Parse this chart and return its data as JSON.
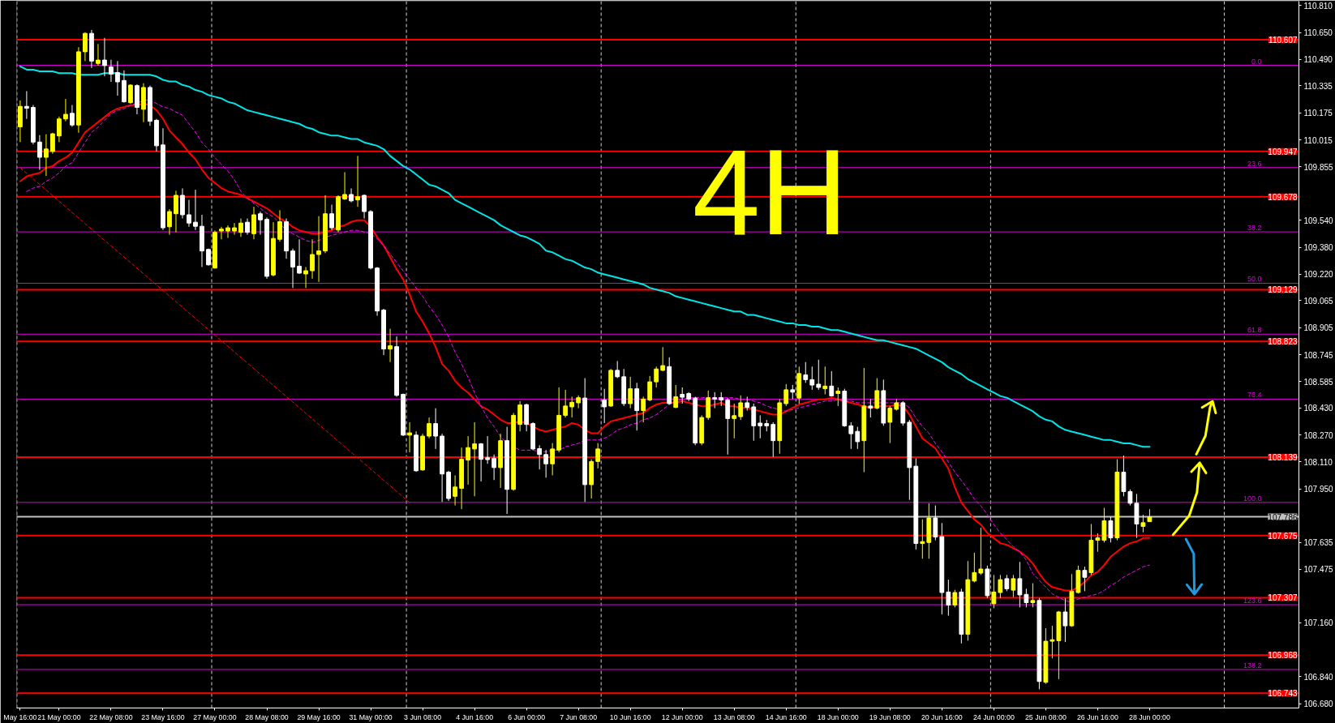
{
  "chart_data": {
    "type": "candlestick",
    "categories": [
      "May 16:00",
      null,
      null,
      null,
      null,
      null,
      "21 May 00:00",
      null,
      null,
      null,
      null,
      null,
      null,
      null,
      "22 May 08:00",
      null,
      null,
      null,
      null,
      null,
      null,
      null,
      "23 May 16:00",
      null,
      null,
      null,
      null,
      null,
      null,
      null,
      "27 May 00:00",
      null,
      null,
      null,
      null,
      null,
      null,
      null,
      "28 May 08:00",
      null,
      null,
      null,
      null,
      null,
      null,
      null,
      "29 May 16:00",
      null,
      null,
      null,
      null,
      null,
      null,
      null,
      "31 May 00:00",
      null,
      null,
      null,
      null,
      null,
      null,
      null,
      "3 Jun 08:00",
      null,
      null,
      null,
      null,
      null,
      null,
      null,
      "4 Jun 16:00",
      null,
      null,
      null,
      null,
      null,
      null,
      null,
      "6 Jun 00:00",
      null,
      null,
      null,
      null,
      null,
      null,
      null,
      "7 Jun 08:00",
      null,
      null,
      null,
      null,
      null,
      null,
      null,
      "10 Jun 16:00",
      null,
      null,
      null,
      null,
      null,
      null,
      null,
      "12 Jun 00:00",
      null,
      null,
      null,
      null,
      null,
      null,
      null,
      "13 Jun 08:00",
      null,
      null,
      null,
      null,
      null,
      null,
      null,
      "14 Jun 16:00",
      null,
      null,
      null,
      null,
      null,
      null,
      null,
      "18 Jun 00:00",
      null,
      null,
      null,
      null,
      null,
      null,
      null,
      "19 Jun 08:00",
      null,
      null,
      null,
      null,
      null,
      null,
      null,
      "20 Jun 16:00",
      null,
      null,
      null,
      null,
      null,
      null,
      null,
      "24 Jun 00:00",
      null,
      null,
      null,
      null,
      null,
      null,
      null,
      "25 Jun 08:00",
      null,
      null,
      null,
      null,
      null,
      null,
      null,
      "26 Jun 16:00",
      null,
      null,
      null,
      null,
      null,
      null,
      null,
      "28 Jun 00:00"
    ],
    "ohlc": [
      [
        110.092,
        110.248,
        110.002,
        110.213
      ],
      [
        110.213,
        110.303,
        110.139,
        110.202
      ],
      [
        110.207,
        110.221,
        109.988,
        110.002
      ],
      [
        110.002,
        110.043,
        109.838,
        109.912
      ],
      [
        109.912,
        110.048,
        109.802,
        109.961
      ],
      [
        109.947,
        110.057,
        109.933,
        110.051
      ],
      [
        110.038,
        110.153,
        110.002,
        110.139
      ],
      [
        110.139,
        110.257,
        110.125,
        110.166
      ],
      [
        110.172,
        110.221,
        110.092,
        110.103
      ],
      [
        110.103,
        110.563,
        110.057,
        110.536
      ],
      [
        110.536,
        110.651,
        110.481,
        110.645
      ],
      [
        110.645,
        110.665,
        110.44,
        110.481
      ],
      [
        110.467,
        110.582,
        110.454,
        110.487
      ],
      [
        110.487,
        110.618,
        110.391,
        110.454
      ],
      [
        110.446,
        110.489,
        110.358,
        110.404
      ],
      [
        110.413,
        110.481,
        110.276,
        110.358
      ],
      [
        110.366,
        110.426,
        110.235,
        110.24
      ],
      [
        110.235,
        110.344,
        110.229,
        110.339
      ],
      [
        110.336,
        110.344,
        110.166,
        110.207
      ],
      [
        110.196,
        110.35,
        110.12,
        110.325
      ],
      [
        110.325,
        110.336,
        110.098,
        110.125
      ],
      [
        110.131,
        110.139,
        109.947,
        109.98
      ],
      [
        109.985,
        110.084,
        109.482,
        109.495
      ],
      [
        109.501,
        109.605,
        109.454,
        109.591
      ],
      [
        109.578,
        109.714,
        109.468,
        109.687
      ],
      [
        109.687,
        109.728,
        109.55,
        109.572
      ],
      [
        109.572,
        109.66,
        109.501,
        109.523
      ],
      [
        109.528,
        109.72,
        109.482,
        109.504
      ],
      [
        109.504,
        109.572,
        109.263,
        109.358
      ],
      [
        109.367,
        109.372,
        109.271,
        109.276
      ],
      [
        109.257,
        109.479,
        109.254,
        109.468
      ],
      [
        109.476,
        109.501,
        109.427,
        109.487
      ],
      [
        109.476,
        109.509,
        109.435,
        109.495
      ],
      [
        109.476,
        109.523,
        109.454,
        109.495
      ],
      [
        109.468,
        109.55,
        109.441,
        109.523
      ],
      [
        109.528,
        109.55,
        109.454,
        109.468
      ],
      [
        109.46,
        109.619,
        109.427,
        109.572
      ],
      [
        109.578,
        109.591,
        109.454,
        109.542
      ],
      [
        109.545,
        109.556,
        109.194,
        109.208
      ],
      [
        109.216,
        109.528,
        109.208,
        109.432
      ],
      [
        109.427,
        109.599,
        109.413,
        109.531
      ],
      [
        109.531,
        109.55,
        109.312,
        109.358
      ],
      [
        109.358,
        109.372,
        109.139,
        109.263
      ],
      [
        109.268,
        109.427,
        109.222,
        109.227
      ],
      [
        109.222,
        109.263,
        109.139,
        109.241
      ],
      [
        109.241,
        109.427,
        109.194,
        109.337
      ],
      [
        109.337,
        109.564,
        109.175,
        109.358
      ],
      [
        109.358,
        109.687,
        109.345,
        109.578
      ],
      [
        109.578,
        109.632,
        109.482,
        109.495
      ],
      [
        109.482,
        109.687,
        109.468,
        109.679
      ],
      [
        109.665,
        109.824,
        109.66,
        109.692
      ],
      [
        109.692,
        109.728,
        109.646,
        109.654
      ],
      [
        109.66,
        109.92,
        109.619,
        109.679
      ],
      [
        109.687,
        109.692,
        109.55,
        109.591
      ],
      [
        109.591,
        109.599,
        109.249,
        109.257
      ],
      [
        109.257,
        109.263,
        108.975,
        109.003
      ],
      [
        109.008,
        109.016,
        108.742,
        108.778
      ],
      [
        108.778,
        108.898,
        108.701,
        108.797
      ],
      [
        108.792,
        108.852,
        108.496,
        108.504
      ],
      [
        108.51,
        108.515,
        108.263,
        108.269
      ],
      [
        108.269,
        108.345,
        108.167,
        108.282
      ],
      [
        108.269,
        108.291,
        108.052,
        108.058
      ],
      [
        108.063,
        108.277,
        108.058,
        108.263
      ],
      [
        108.263,
        108.373,
        108.25,
        108.337
      ],
      [
        108.337,
        108.428,
        108.187,
        108.263
      ],
      [
        108.263,
        108.277,
        107.874,
        108.039
      ],
      [
        108.05,
        108.058,
        107.88,
        107.894
      ],
      [
        107.907,
        108.031,
        107.853,
        107.962
      ],
      [
        107.954,
        108.195,
        107.831,
        108.126
      ],
      [
        108.121,
        108.263,
        107.976,
        108.195
      ],
      [
        108.187,
        108.345,
        107.907,
        108.217
      ],
      [
        108.217,
        108.222,
        107.995,
        108.126
      ],
      [
        108.135,
        108.263,
        108.099,
        108.124
      ],
      [
        108.132,
        108.154,
        108.003,
        108.077
      ],
      [
        108.077,
        108.277,
        107.957,
        108.236
      ],
      [
        108.236,
        108.318,
        107.803,
        107.948
      ],
      [
        107.948,
        108.4,
        107.94,
        108.386
      ],
      [
        108.332,
        108.469,
        108.291,
        108.447
      ],
      [
        108.449,
        108.455,
        108.291,
        108.332
      ],
      [
        108.337,
        108.345,
        108.181,
        108.187
      ],
      [
        108.189,
        108.209,
        108.066,
        108.154
      ],
      [
        108.154,
        108.181,
        108.017,
        108.099
      ],
      [
        108.099,
        108.222,
        108.031,
        108.187
      ],
      [
        108.181,
        108.551,
        108.167,
        108.386
      ],
      [
        108.386,
        108.537,
        108.373,
        108.441
      ],
      [
        108.436,
        108.496,
        108.373,
        108.463
      ],
      [
        108.46,
        108.504,
        108.428,
        108.49
      ],
      [
        108.488,
        108.606,
        107.874,
        107.976
      ],
      [
        107.976,
        108.126,
        107.894,
        108.113
      ],
      [
        108.113,
        108.222,
        108.072,
        108.187
      ],
      [
        108.477,
        108.543,
        108.34,
        108.436
      ],
      [
        108.441,
        108.66,
        108.436,
        108.652
      ],
      [
        108.652,
        108.707,
        108.606,
        108.614
      ],
      [
        108.614,
        108.66,
        108.441,
        108.455
      ],
      [
        108.455,
        108.614,
        108.428,
        108.543
      ],
      [
        108.543,
        108.578,
        108.296,
        108.414
      ],
      [
        108.414,
        108.496,
        108.345,
        108.482
      ],
      [
        108.477,
        108.619,
        108.469,
        108.584
      ],
      [
        108.584,
        108.674,
        108.551,
        108.66
      ],
      [
        108.652,
        108.789,
        108.647,
        108.68
      ],
      [
        108.674,
        108.729,
        108.449,
        108.455
      ],
      [
        108.433,
        108.565,
        108.428,
        108.496
      ],
      [
        108.51,
        108.551,
        108.455,
        108.493
      ],
      [
        108.515,
        108.523,
        108.469,
        108.482
      ],
      [
        108.488,
        108.496,
        108.209,
        108.222
      ],
      [
        108.222,
        108.386,
        108.209,
        108.373
      ],
      [
        108.373,
        108.532,
        108.359,
        108.49
      ],
      [
        108.49,
        108.523,
        108.428,
        108.482
      ],
      [
        108.49,
        108.523,
        108.441,
        108.477
      ],
      [
        108.477,
        108.488,
        108.154,
        108.367
      ],
      [
        108.367,
        108.455,
        108.25,
        108.384
      ],
      [
        108.378,
        108.504,
        108.359,
        108.46
      ],
      [
        108.46,
        108.496,
        108.414,
        108.433
      ],
      [
        108.436,
        108.455,
        108.236,
        108.324
      ],
      [
        108.34,
        108.386,
        108.25,
        108.324
      ],
      [
        108.337,
        108.359,
        108.291,
        108.324
      ],
      [
        108.332,
        108.345,
        108.14,
        108.236
      ],
      [
        108.236,
        108.482,
        108.159,
        108.46
      ],
      [
        108.455,
        108.57,
        108.441,
        108.537
      ],
      [
        108.537,
        108.565,
        108.482,
        108.523
      ],
      [
        108.488,
        108.674,
        108.455,
        108.633
      ],
      [
        108.625,
        108.701,
        108.578,
        108.597
      ],
      [
        108.597,
        108.674,
        108.537,
        108.565
      ],
      [
        108.57,
        108.715,
        108.537,
        108.551
      ],
      [
        108.543,
        108.674,
        108.51,
        108.559
      ],
      [
        108.559,
        108.647,
        108.496,
        108.501
      ],
      [
        108.515,
        108.551,
        108.441,
        108.529
      ],
      [
        108.529,
        108.543,
        108.318,
        108.324
      ],
      [
        108.324,
        108.345,
        108.187,
        108.277
      ],
      [
        108.291,
        108.318,
        108.187,
        108.23
      ],
      [
        108.236,
        108.666,
        108.05,
        108.441
      ],
      [
        108.441,
        108.482,
        108.373,
        108.428
      ],
      [
        108.428,
        108.606,
        108.422,
        108.532
      ],
      [
        108.532,
        108.597,
        108.324,
        108.34
      ],
      [
        108.345,
        108.441,
        108.222,
        108.428
      ],
      [
        108.422,
        108.482,
        108.414,
        108.46
      ],
      [
        108.46,
        108.469,
        108.324,
        108.34
      ],
      [
        108.345,
        108.359,
        107.886,
        108.077
      ],
      [
        108.085,
        108.132,
        107.593,
        107.628
      ],
      [
        107.628,
        107.771,
        107.538,
        107.639
      ],
      [
        107.634,
        107.866,
        107.538,
        107.779
      ],
      [
        107.779,
        107.853,
        107.647,
        107.666
      ],
      [
        107.669,
        107.749,
        107.209,
        107.338
      ],
      [
        107.341,
        107.414,
        107.201,
        107.264
      ],
      [
        107.264,
        107.354,
        107.25,
        107.338
      ],
      [
        107.341,
        107.36,
        107.037,
        107.091
      ],
      [
        107.091,
        107.524,
        107.053,
        107.414
      ],
      [
        107.406,
        107.573,
        107.398,
        107.456
      ],
      [
        107.453,
        107.721,
        107.442,
        107.477
      ],
      [
        107.477,
        107.497,
        107.305,
        107.319
      ],
      [
        107.272,
        107.442,
        107.245,
        107.341
      ],
      [
        107.338,
        107.442,
        107.305,
        107.414
      ],
      [
        107.42,
        107.442,
        107.346,
        107.36
      ],
      [
        107.352,
        107.442,
        107.311,
        107.42
      ],
      [
        107.42,
        107.519,
        107.25,
        107.324
      ],
      [
        107.327,
        107.36,
        107.25,
        107.278
      ],
      [
        107.278,
        107.393,
        107.25,
        107.291
      ],
      [
        107.291,
        107.305,
        106.766,
        106.812
      ],
      [
        106.807,
        107.127,
        106.798,
        107.05
      ],
      [
        107.05,
        107.141,
        106.949,
        107.059
      ],
      [
        107.053,
        107.229,
        106.826,
        107.223
      ],
      [
        107.223,
        107.305,
        107.045,
        107.141
      ],
      [
        107.141,
        107.447,
        107.135,
        107.346
      ],
      [
        107.338,
        107.497,
        107.332,
        107.469
      ],
      [
        107.469,
        107.491,
        107.346,
        107.428
      ],
      [
        107.456,
        107.743,
        107.442,
        107.647
      ],
      [
        107.647,
        107.688,
        107.579,
        107.661
      ],
      [
        107.647,
        107.839,
        107.634,
        107.762
      ],
      [
        107.762,
        107.784,
        107.634,
        107.661
      ],
      [
        107.661,
        108.126,
        107.647,
        108.05
      ],
      [
        108.05,
        108.148,
        107.907,
        107.935
      ],
      [
        107.935,
        107.948,
        107.853,
        107.866
      ],
      [
        107.866,
        107.921,
        107.661,
        107.743
      ],
      [
        107.729,
        107.798,
        107.694,
        107.751
      ],
      [
        107.757,
        107.831,
        107.757,
        107.786
      ]
    ],
    "colors": [
      "#ffff00",
      "#ffffff",
      "#ffffff",
      "#ffffff",
      "#ffff00",
      "#ffff00",
      "#ffff00",
      "#ffff00",
      "#ffffff",
      "#ffff00",
      "#ffff00",
      "#ffffff",
      "#ffff00",
      "#ffffff",
      "#ffffff",
      "#ffffff",
      "#ffffff",
      "#ffff00",
      "#ffffff",
      "#ffff00",
      "#ffffff",
      "#ffffff",
      "#ffffff",
      "#ffff00",
      "#ffff00",
      "#ffffff",
      "#ffffff",
      "#ffffff",
      "#ffffff",
      "#ffffff",
      "#ffff00",
      "#ffff00",
      "#ffff00",
      "#ffff00",
      "#ffff00",
      "#ffffff",
      "#ffff00",
      "#ffffff",
      "#ffffff",
      "#ffff00",
      "#ffff00",
      "#ffffff",
      "#ffffff",
      "#ffffff",
      "#ffff00",
      "#ffff00",
      "#ffff00",
      "#ffff00",
      "#ffffff",
      "#ffff00",
      "#ffff00",
      "#ffffff",
      "#ffff00",
      "#ffffff",
      "#ffffff",
      "#ffffff",
      "#ffffff",
      "#ffff00",
      "#ffffff",
      "#ffffff",
      "#ffff00",
      "#ffffff",
      "#ffff00",
      "#ffff00",
      "#ffffff",
      "#ffffff",
      "#ffffff",
      "#ffff00",
      "#ffff00",
      "#ffff00",
      "#ffff00",
      "#ffffff",
      "#ffffff",
      "#ffffff",
      "#ffff00",
      "#ffffff",
      "#ffff00",
      "#ffff00",
      "#ffffff",
      "#ffffff",
      "#ffffff",
      "#ffffff",
      "#ffff00",
      "#ffff00",
      "#ffff00",
      "#ffff00",
      "#ffff00",
      "#ffffff",
      "#ffff00",
      "#ffff00",
      "#ffffff",
      "#ffff00",
      "#ffffff",
      "#ffffff",
      "#ffff00",
      "#ffffff",
      "#ffff00",
      "#ffff00",
      "#ffff00",
      "#ffff00",
      "#ffffff",
      "#ffff00",
      "#ffffff",
      "#ffffff",
      "#ffffff",
      "#ffff00",
      "#ffff00",
      "#ffffff",
      "#ffffff",
      "#ffffff",
      "#ffff00",
      "#ffff00",
      "#ffffff",
      "#ffffff",
      "#ffffff",
      "#ffffff",
      "#ffffff",
      "#ffff00",
      "#ffff00",
      "#ffffff",
      "#ffff00",
      "#ffffff",
      "#ffffff",
      "#ffffff",
      "#ffff00",
      "#ffffff",
      "#ffff00",
      "#ffffff",
      "#ffffff",
      "#ffffff",
      "#ffff00",
      "#ffffff",
      "#ffff00",
      "#ffffff",
      "#ffff00",
      "#ffff00",
      "#ffffff",
      "#ffffff",
      "#ffffff",
      "#ffff00",
      "#ffff00",
      "#ffffff",
      "#ffffff",
      "#ffffff",
      "#ffff00",
      "#ffffff",
      "#ffff00",
      "#ffff00",
      "#ffff00",
      "#ffffff",
      "#ffff00",
      "#ffff00",
      "#ffffff",
      "#ffff00",
      "#ffffff",
      "#ffffff",
      "#ffff00",
      "#ffffff",
      "#ffff00",
      "#ffff00",
      "#ffff00",
      "#ffffff",
      "#ffff00",
      "#ffff00",
      "#ffffff",
      "#ffff00",
      "#ffff00",
      "#ffff00",
      "#ffffff",
      "#ffff00",
      "#ffffff",
      "#ffffff",
      "#ffffff",
      "#ffff00",
      "#ffff00"
    ],
    "series": [
      {
        "type": "line",
        "color": "#00e6e6",
        "line_style": "solid",
        "values": [
          110.45,
          110.43,
          110.43,
          110.42,
          110.42,
          110.42,
          110.41,
          110.41,
          110.41,
          110.4,
          110.4,
          110.4,
          110.4,
          110.41,
          110.41,
          110.41,
          110.4,
          110.4,
          110.4,
          110.4,
          110.4,
          110.39,
          110.37,
          110.36,
          110.36,
          110.34,
          110.33,
          110.31,
          110.3,
          110.28,
          110.27,
          110.26,
          110.24,
          110.23,
          110.21,
          110.19,
          110.18,
          110.17,
          110.16,
          110.15,
          110.14,
          110.13,
          110.12,
          110.11,
          110.09,
          110.08,
          110.06,
          110.05,
          110.04,
          110.04,
          110.03,
          110.02,
          110.02,
          110.0,
          109.99,
          109.98,
          109.96,
          109.92,
          109.89,
          109.86,
          109.84,
          109.81,
          109.78,
          109.75,
          109.74,
          109.72,
          109.7,
          109.66,
          109.64,
          109.62,
          109.6,
          109.58,
          109.56,
          109.54,
          109.51,
          109.49,
          109.47,
          109.45,
          109.44,
          109.42,
          109.4,
          109.36,
          109.35,
          109.33,
          109.31,
          109.3,
          109.28,
          109.26,
          109.25,
          109.23,
          109.22,
          109.21,
          109.2,
          109.19,
          109.18,
          109.17,
          109.16,
          109.14,
          109.13,
          109.12,
          109.11,
          109.09,
          109.08,
          109.07,
          109.06,
          109.05,
          109.04,
          109.03,
          109.02,
          109.01,
          109.0,
          109.0,
          108.98,
          108.98,
          108.97,
          108.96,
          108.95,
          108.94,
          108.93,
          108.93,
          108.92,
          108.92,
          108.91,
          108.91,
          108.9,
          108.89,
          108.89,
          108.88,
          108.87,
          108.86,
          108.85,
          108.84,
          108.83,
          108.83,
          108.82,
          108.81,
          108.8,
          108.79,
          108.78,
          108.76,
          108.74,
          108.72,
          108.7,
          108.67,
          108.65,
          108.63,
          108.6,
          108.58,
          108.56,
          108.54,
          108.52,
          108.5,
          108.49,
          108.47,
          108.45,
          108.43,
          108.41,
          108.38,
          108.36,
          108.35,
          108.32,
          108.3,
          108.29,
          108.28,
          108.27,
          108.26,
          108.25,
          108.24,
          108.24,
          108.23,
          108.22,
          108.22,
          108.21,
          108.2,
          108.2
        ]
      },
      {
        "type": "line",
        "color": "#ff0000",
        "line_style": "solid",
        "values": [
          109.77,
          109.8,
          109.81,
          109.82,
          109.85,
          109.86,
          109.89,
          109.91,
          109.94,
          110.0,
          110.06,
          110.09,
          110.12,
          110.15,
          110.18,
          110.2,
          110.21,
          110.22,
          110.22,
          110.23,
          110.22,
          110.19,
          110.14,
          110.07,
          110.03,
          109.99,
          109.94,
          109.9,
          109.84,
          109.79,
          109.76,
          109.73,
          109.71,
          109.7,
          109.69,
          109.67,
          109.65,
          109.63,
          109.61,
          109.58,
          109.55,
          109.53,
          109.5,
          109.48,
          109.47,
          109.46,
          109.46,
          109.47,
          109.48,
          109.5,
          109.51,
          109.53,
          109.54,
          109.54,
          109.5,
          109.44,
          109.39,
          109.32,
          109.25,
          109.19,
          109.1,
          109.0,
          108.94,
          108.87,
          108.79,
          108.69,
          108.65,
          108.59,
          108.55,
          108.52,
          108.48,
          108.44,
          108.42,
          108.39,
          108.36,
          108.34,
          108.34,
          108.35,
          108.34,
          108.32,
          108.3,
          108.29,
          108.3,
          108.31,
          108.32,
          108.34,
          108.33,
          108.3,
          108.28,
          108.28,
          108.32,
          108.35,
          108.36,
          108.37,
          108.38,
          108.39,
          108.4,
          108.43,
          108.45,
          108.46,
          108.46,
          108.46,
          108.47,
          108.46,
          108.45,
          108.44,
          108.44,
          108.45,
          108.46,
          108.44,
          108.44,
          108.43,
          108.43,
          108.42,
          108.41,
          108.4,
          108.39,
          108.39,
          108.41,
          108.43,
          108.45,
          108.46,
          108.47,
          108.48,
          108.48,
          108.49,
          108.48,
          108.47,
          108.46,
          108.45,
          108.44,
          108.43,
          108.44,
          108.44,
          108.44,
          108.45,
          108.44,
          108.39,
          108.32,
          108.25,
          108.22,
          108.19,
          108.13,
          108.07,
          107.96,
          107.87,
          107.82,
          107.77,
          107.74,
          107.69,
          107.66,
          107.63,
          107.62,
          107.6,
          107.58,
          107.55,
          107.51,
          107.45,
          107.4,
          107.37,
          107.36,
          107.35,
          107.35,
          107.37,
          107.4,
          107.44,
          107.46,
          107.5,
          107.55,
          107.58,
          107.61,
          107.63,
          107.64,
          107.66,
          107.66
        ]
      },
      {
        "type": "line",
        "color": "#ff00ff",
        "line_style": "dashed",
        "values": [
          null,
          109.71,
          109.73,
          109.74,
          109.77,
          109.79,
          109.82,
          109.86,
          109.88,
          109.94,
          110.0,
          110.06,
          110.09,
          110.13,
          110.17,
          110.19,
          110.2,
          110.22,
          110.23,
          110.25,
          110.25,
          110.23,
          110.21,
          110.2,
          110.18,
          110.16,
          110.11,
          110.06,
          110.0,
          109.96,
          109.91,
          109.87,
          109.83,
          109.78,
          109.71,
          109.67,
          109.64,
          109.61,
          109.58,
          109.56,
          109.52,
          109.48,
          109.46,
          109.44,
          109.42,
          109.41,
          109.42,
          109.44,
          109.45,
          109.46,
          109.47,
          109.48,
          109.48,
          109.47,
          109.46,
          109.43,
          109.39,
          109.34,
          109.29,
          109.24,
          109.19,
          109.14,
          109.09,
          109.03,
          108.98,
          108.92,
          108.85,
          108.76,
          108.69,
          108.61,
          108.52,
          108.44,
          108.37,
          108.32,
          108.26,
          108.22,
          108.2,
          108.18,
          108.18,
          108.18,
          108.17,
          108.17,
          108.18,
          108.18,
          108.2,
          108.21,
          108.22,
          108.24,
          108.24,
          108.24,
          108.25,
          108.27,
          108.3,
          108.31,
          108.33,
          108.34,
          108.36,
          108.37,
          108.39,
          108.42,
          108.45,
          108.47,
          108.48,
          108.49,
          108.49,
          108.49,
          108.49,
          108.49,
          108.49,
          108.49,
          108.49,
          108.48,
          108.48,
          108.47,
          108.46,
          108.44,
          108.43,
          108.42,
          108.41,
          108.42,
          108.43,
          108.44,
          108.45,
          108.46,
          108.47,
          108.47,
          108.48,
          108.47,
          108.47,
          108.46,
          108.46,
          108.46,
          108.46,
          108.46,
          108.46,
          108.46,
          108.46,
          108.43,
          108.37,
          108.32,
          108.28,
          108.22,
          108.17,
          108.11,
          108.05,
          108.0,
          107.95,
          107.89,
          107.85,
          107.8,
          107.74,
          107.69,
          107.65,
          107.61,
          107.58,
          107.53,
          107.45,
          107.41,
          107.37,
          107.33,
          107.31,
          107.29,
          107.28,
          107.3,
          107.31,
          107.32,
          107.33,
          107.35,
          107.38,
          107.4,
          107.43,
          107.45,
          107.47,
          107.49,
          107.5
        ]
      },
      {
        "type": "line",
        "color": "#ff0000",
        "line_style": "dashed",
        "values": [
          109.85,
          109.817,
          109.784,
          109.751,
          109.718,
          109.685,
          109.652,
          109.619,
          109.586,
          109.553,
          109.52,
          109.487,
          109.454,
          109.421,
          109.388,
          109.355,
          109.322,
          109.289,
          109.256,
          109.223,
          109.19,
          109.157,
          109.124,
          109.091,
          109.058,
          109.025,
          108.992,
          108.959,
          108.926,
          108.893,
          108.86,
          108.827,
          108.794,
          108.761,
          108.728,
          108.695,
          108.662,
          108.629,
          108.596,
          108.563,
          108.53,
          108.497,
          108.464,
          108.431,
          108.398,
          108.365,
          108.332,
          108.299,
          108.266,
          108.233,
          108.2,
          108.167,
          108.134,
          108.101,
          108.068,
          108.035,
          108.002,
          107.969,
          107.936,
          107.903,
          107.87,
          null,
          null,
          null,
          null,
          null,
          null,
          null,
          null,
          null,
          null,
          null,
          null,
          null,
          null,
          null,
          null,
          null,
          null,
          null,
          null,
          null,
          null,
          null,
          null,
          null,
          null,
          null,
          null,
          null,
          null,
          null,
          null,
          null,
          null,
          null,
          null,
          null,
          null,
          null,
          null,
          null,
          null,
          null,
          null,
          null,
          null,
          null,
          null,
          null,
          null,
          null,
          null,
          null,
          null,
          null,
          null,
          null,
          null,
          null,
          null,
          null,
          null,
          null,
          null,
          null,
          null,
          null,
          null,
          null,
          null,
          null,
          null,
          null,
          null,
          null,
          null,
          null,
          null,
          null,
          null,
          null,
          null,
          null,
          null,
          null,
          null,
          null,
          null,
          null,
          null,
          null,
          null,
          null,
          null,
          null,
          null,
          null,
          null,
          null,
          null,
          null,
          null,
          null,
          null,
          null,
          null,
          null,
          null,
          null,
          null,
          null,
          null,
          null,
          null
        ]
      }
    ],
    "ylim": [
      106.655,
      110.835
    ],
    "yticks": [
      {
        "value": 110.81,
        "label": "110.810"
      },
      {
        "value": 110.65,
        "label": "110.650"
      },
      {
        "value": 110.49,
        "label": "110.490"
      },
      110.335,
      110.175,
      110.015,
      109.855,
      {
        "value": 109.54,
        "label": "109.540"
      },
      {
        "value": 109.38,
        "label": "109.380"
      },
      {
        "value": 109.22,
        "label": "109.220"
      },
      109.065,
      108.905,
      108.745,
      108.585,
      {
        "value": 108.43,
        "label": "108.430"
      },
      {
        "value": 108.27,
        "label": "108.270"
      },
      {
        "value": 108.11,
        "label": "108.110"
      },
      {
        "value": 107.95,
        "label": "107.950"
      },
      107.635,
      107.475,
      {
        "value": 107.16,
        "label": "107.160"
      },
      {
        "value": 106.84,
        "label": "106.840"
      },
      {
        "value": 106.68,
        "label": "106.680"
      }
    ],
    "ref_lines": [
      {
        "axis": "y",
        "value": 110.456,
        "color": "#dd00dd"
      },
      {
        "axis": "y",
        "value": 109.851,
        "color": "#dd00dd"
      },
      {
        "axis": "y",
        "value": 109.471,
        "color": "#dd00dd"
      },
      {
        "axis": "y",
        "value": 109.167,
        "color": "#dd00dd"
      },
      {
        "axis": "y",
        "value": 108.866,
        "color": "#dd00dd"
      },
      {
        "axis": "y",
        "value": 108.482,
        "color": "#dd00dd"
      },
      {
        "axis": "y",
        "value": 107.871,
        "color": "#dd00dd"
      },
      {
        "axis": "y",
        "value": 107.266,
        "color": "#dd00dd"
      },
      {
        "axis": "y",
        "value": 106.883,
        "color": "#dd00dd"
      },
      {
        "axis": "y",
        "value": 110.607,
        "label": "110.607",
        "color": "#ff0000"
      },
      {
        "axis": "y",
        "value": 109.947,
        "label": "109.947",
        "color": "#ff0000"
      },
      {
        "axis": "y",
        "value": 109.678,
        "label": "109.678",
        "color": "#ff0000"
      },
      {
        "axis": "y",
        "value": 109.129,
        "label": "109.129",
        "color": "#ff0000"
      },
      {
        "axis": "y",
        "value": 108.823,
        "label": "108.823",
        "color": "#ff0000"
      },
      {
        "axis": "y",
        "value": 108.139,
        "label": "108.139",
        "color": "#ff0000"
      },
      {
        "axis": "y",
        "value": 107.675,
        "label": "107.675",
        "color": "#ff0000"
      },
      {
        "axis": "y",
        "value": 107.307,
        "label": "107.307",
        "color": "#ff0000"
      },
      {
        "axis": "y",
        "value": 106.968,
        "label": "106.968",
        "color": "#ff0000"
      },
      {
        "axis": "y",
        "value": 106.743,
        "label": "106.743",
        "color": "#ff0000"
      },
      {
        "axis": "y",
        "value": 107.786,
        "label": "107.786",
        "color": "#c0c0c0"
      }
    ],
    "annotations": [
      "4H",
      {
        "text": "0.0",
        "y": 110.456
      },
      {
        "text": "23.6",
        "y": 109.851
      },
      {
        "text": "38.2",
        "y": 109.471
      },
      {
        "text": "50.0",
        "y": 109.167
      },
      {
        "text": "61.8",
        "y": 108.866
      },
      {
        "text": "76.4",
        "y": 108.482
      },
      {
        "text": "100.0",
        "y": 107.871
      },
      {
        "text": "123.6",
        "y": 107.266
      },
      {
        "text": "138.2",
        "y": 106.883
      }
    ]
  }
}
